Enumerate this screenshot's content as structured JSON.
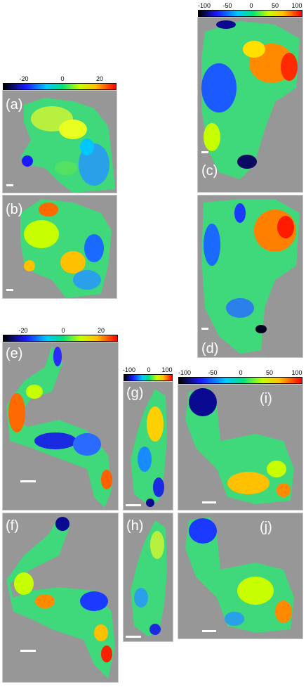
{
  "colorbars": {
    "cb1": {
      "ticks": [
        "-20",
        "0",
        "20"
      ],
      "gradient": [
        "#000000",
        "#1a1aff",
        "#00c8ff",
        "#00e080",
        "#c8ff00",
        "#ffc000",
        "#ff0000"
      ]
    },
    "cb2": {
      "ticks": [
        "-100",
        "-50",
        "0",
        "50",
        "100"
      ],
      "gradient": [
        "#000000",
        "#1a1aff",
        "#00c8ff",
        "#00e080",
        "#c8ff00",
        "#ffc000",
        "#ff0000"
      ]
    },
    "cb3": {
      "ticks": [
        "-20",
        "0",
        "20"
      ],
      "gradient": [
        "#000000",
        "#1a1aff",
        "#00c8ff",
        "#00e080",
        "#c8ff00",
        "#ffc000",
        "#ff0000"
      ]
    },
    "cb4": {
      "ticks": [
        "-100",
        "0",
        "100"
      ],
      "gradient": [
        "#000000",
        "#1a1aff",
        "#00c8ff",
        "#00e080",
        "#c8ff00",
        "#ffc000",
        "#ff0000"
      ]
    },
    "cb5": {
      "ticks": [
        "-100",
        "-50",
        "0",
        "50",
        "100"
      ],
      "gradient": [
        "#000000",
        "#1a1aff",
        "#00c8ff",
        "#00e080",
        "#c8ff00",
        "#ffc000",
        "#ff0000"
      ]
    }
  },
  "panels": {
    "a": "(a)",
    "b": "(b)",
    "c": "(c)",
    "d": "(d)",
    "e": "(e)",
    "f": "(f)",
    "g": "(g)",
    "h": "(h)",
    "i": "(i)",
    "j": "(j)"
  },
  "colors": {
    "background": "#979797",
    "scalebar": "#ffffff"
  }
}
